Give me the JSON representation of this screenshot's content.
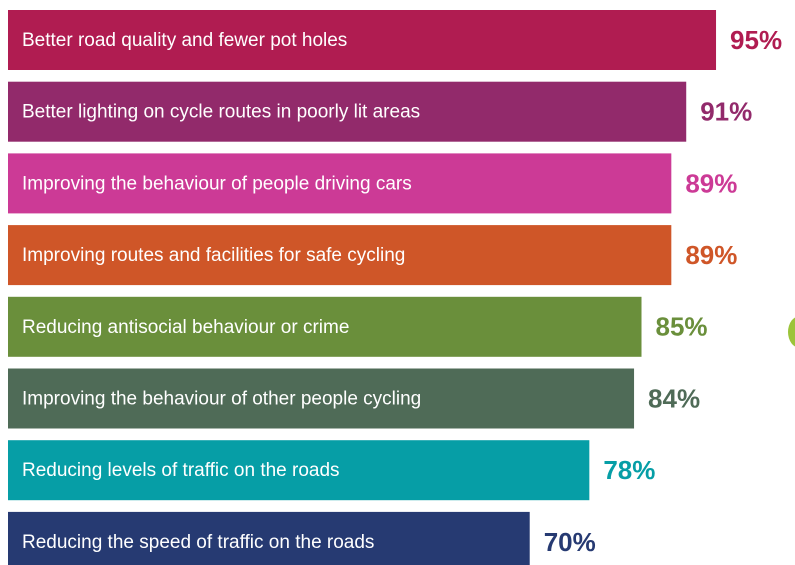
{
  "chart_data": {
    "type": "bar",
    "orientation": "horizontal",
    "categories": [
      "Better road quality and fewer pot holes",
      "Better lighting on cycle routes in poorly lit areas",
      "Improving the behaviour of people driving cars",
      "Improving routes and facilities for safe cycling",
      "Reducing antisocial behaviour or crime",
      "Improving the behaviour of other people cycling",
      "Reducing levels of traffic on the roads",
      "Reducing the speed of traffic on the roads"
    ],
    "values": [
      95,
      91,
      89,
      89,
      85,
      84,
      78,
      70
    ],
    "value_labels": [
      "95%",
      "91%",
      "89%",
      "89%",
      "85%",
      "84%",
      "78%",
      "70%"
    ],
    "colors": [
      "#b01c51",
      "#922a6b",
      "#cc3a96",
      "#cf5628",
      "#6a8f3b",
      "#4f6b57",
      "#069ea6",
      "#263a72"
    ]
  }
}
